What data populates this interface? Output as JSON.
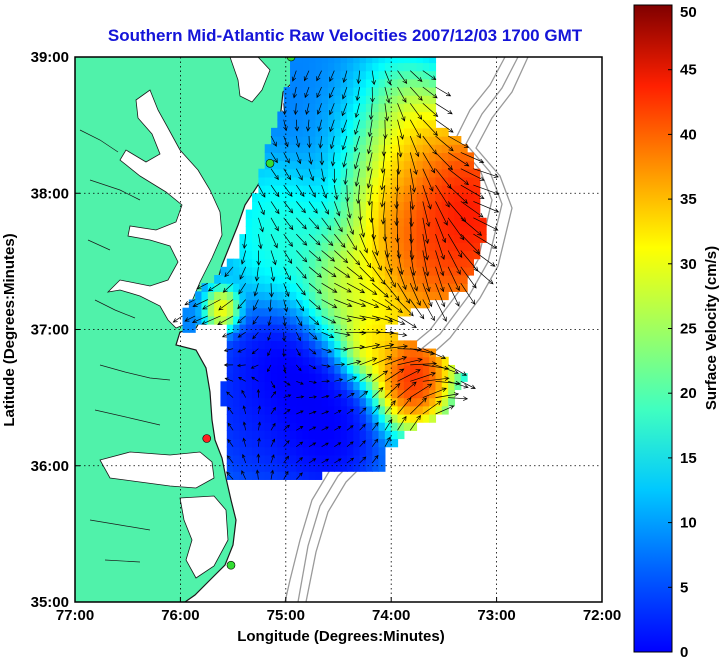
{
  "chart_data": {
    "type": "heatmap",
    "title": "Southern Mid-Atlantic Raw Velocities 2007/12/03 1700 GMT",
    "xlabel": "Longitude (Degrees:Minutes)",
    "ylabel": "Latitude (Degrees:Minutes)",
    "x_ticks": [
      {
        "value": -77,
        "label": "77:00"
      },
      {
        "value": -76,
        "label": "76:00"
      },
      {
        "value": -75,
        "label": "75:00"
      },
      {
        "value": -74,
        "label": "74:00"
      },
      {
        "value": -73,
        "label": "73:00"
      },
      {
        "value": -72,
        "label": "72:00"
      }
    ],
    "y_ticks": [
      {
        "value": 35,
        "label": "35:00"
      },
      {
        "value": 36,
        "label": "36:00"
      },
      {
        "value": 37,
        "label": "37:00"
      },
      {
        "value": 38,
        "label": "38:00"
      },
      {
        "value": 39,
        "label": "39:00"
      }
    ],
    "xlim": [
      -77,
      -72
    ],
    "ylim": [
      35,
      39
    ],
    "grid": true,
    "colorbar": {
      "label": "Surface Velocity (cm/s)",
      "min": 0,
      "max": 50,
      "ticks": [
        {
          "value": 0,
          "label": "0"
        },
        {
          "value": 5,
          "label": "5"
        },
        {
          "value": 10,
          "label": "10"
        },
        {
          "value": 15,
          "label": "15"
        },
        {
          "value": 20,
          "label": "20"
        },
        {
          "value": 25,
          "label": "25"
        },
        {
          "value": 30,
          "label": "30"
        },
        {
          "value": 35,
          "label": "35"
        },
        {
          "value": 40,
          "label": "40"
        },
        {
          "value": 45,
          "label": "45"
        },
        {
          "value": 50,
          "label": "50"
        }
      ],
      "colormap": "jet"
    },
    "speed_field": [
      {
        "lon": -73.3,
        "lat": 37.85,
        "speed": 50,
        "spread": 0.55
      },
      {
        "lon": -73.7,
        "lat": 37.55,
        "speed": 42,
        "spread": 0.5
      },
      {
        "lon": -74.0,
        "lat": 38.3,
        "speed": 38,
        "spread": 0.45
      },
      {
        "lon": -73.8,
        "lat": 36.65,
        "speed": 48,
        "spread": 0.28
      },
      {
        "lon": -74.2,
        "lat": 36.9,
        "speed": 36,
        "spread": 0.22
      },
      {
        "lon": -74.4,
        "lat": 37.3,
        "speed": 32,
        "spread": 0.35
      },
      {
        "lon": -75.6,
        "lat": 37.15,
        "speed": 36,
        "spread": 0.12
      },
      {
        "lon": -75.0,
        "lat": 37.7,
        "speed": 22,
        "spread": 0.4
      },
      {
        "lon": -75.0,
        "lat": 36.6,
        "speed": 4,
        "spread": 0.45
      },
      {
        "lon": -74.6,
        "lat": 36.25,
        "speed": 5,
        "spread": 0.35
      },
      {
        "lon": -75.3,
        "lat": 36.3,
        "speed": 8,
        "spread": 0.35
      },
      {
        "lon": -74.5,
        "lat": 38.5,
        "speed": 12,
        "spread": 0.45
      }
    ],
    "background_speed": 13,
    "coverage": {
      "description_points": [
        [
          -74.96,
          39.02
        ],
        [
          -74.35,
          39.0
        ],
        [
          -73.6,
          39.0
        ],
        [
          -73.55,
          38.5
        ],
        [
          -73.3,
          38.35
        ],
        [
          -73.15,
          38.15
        ],
        [
          -73.12,
          37.65
        ],
        [
          -73.3,
          37.3
        ],
        [
          -73.75,
          37.15
        ],
        [
          -74.1,
          37.0
        ],
        [
          -73.6,
          36.85
        ],
        [
          -73.3,
          36.65
        ],
        [
          -73.45,
          36.4
        ],
        [
          -73.75,
          36.3
        ],
        [
          -74.05,
          36.1
        ],
        [
          -74.1,
          35.95
        ],
        [
          -74.6,
          35.95
        ],
        [
          -74.8,
          35.9
        ],
        [
          -75.1,
          35.88
        ],
        [
          -75.55,
          35.88
        ],
        [
          -75.55,
          36.15
        ],
        [
          -75.6,
          36.55
        ],
        [
          -75.55,
          36.9
        ],
        [
          -75.6,
          37.05
        ],
        [
          -75.95,
          37.0
        ],
        [
          -76.0,
          37.1
        ],
        [
          -75.8,
          37.3
        ],
        [
          -75.45,
          37.55
        ],
        [
          -75.3,
          38.0
        ],
        [
          -75.15,
          38.4
        ],
        [
          -75.0,
          38.7
        ],
        [
          -74.96,
          39.02
        ]
      ]
    },
    "markers": [
      {
        "lon": -74.95,
        "lat": 39.0,
        "color": "#33dd33"
      },
      {
        "lon": -75.15,
        "lat": 38.22,
        "color": "#33dd33"
      },
      {
        "lon": -75.75,
        "lat": 36.2,
        "color": "#ff2020"
      },
      {
        "lon": -75.52,
        "lat": 35.27,
        "color": "#33dd33"
      }
    ]
  }
}
